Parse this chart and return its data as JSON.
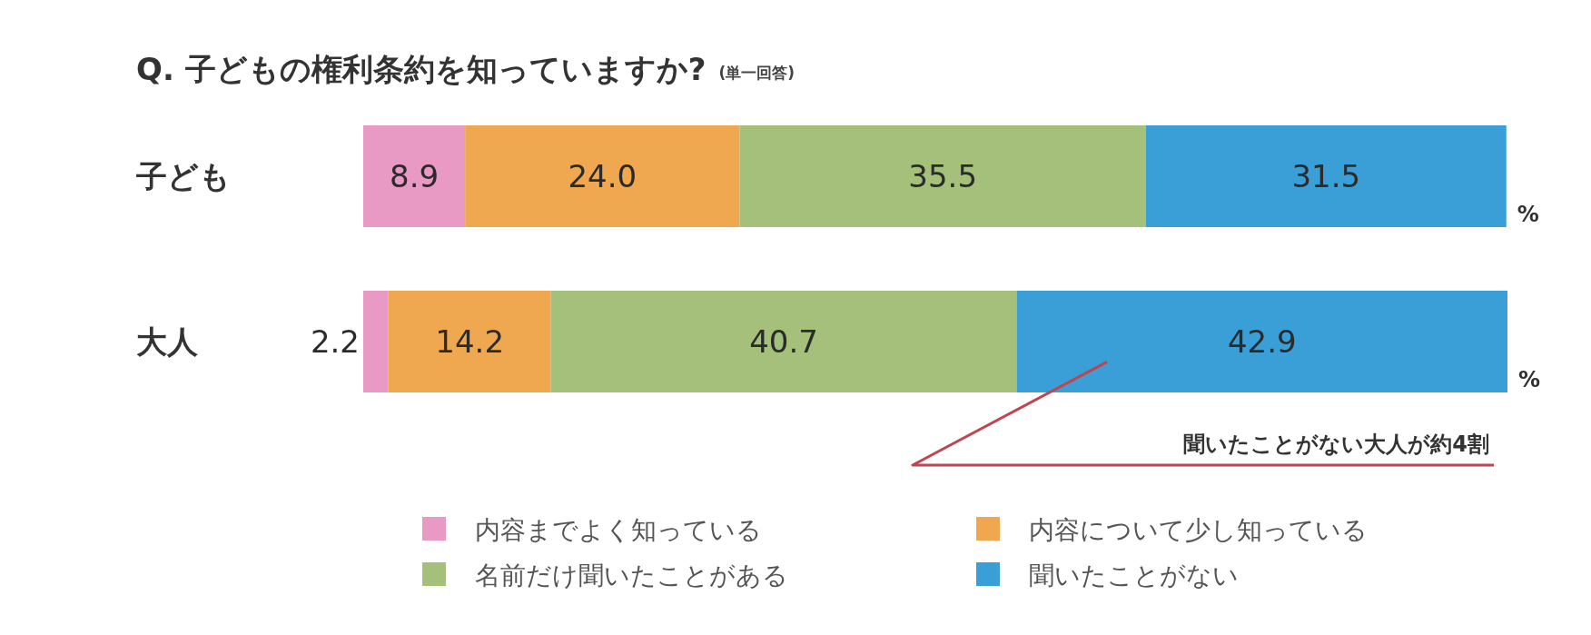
{
  "chart_data": {
    "type": "bar",
    "orientation": "horizontal",
    "stacked": true,
    "title": "Q. 子どもの権利条約を知っていますか?",
    "subtitle": "(単一回答)",
    "categories": [
      "子ども",
      "大人"
    ],
    "series": [
      {
        "name": "内容までよく知っている",
        "color": "#e99ac4",
        "values": [
          8.9,
          2.2
        ],
        "value_labels": [
          "8.9",
          "2.2"
        ]
      },
      {
        "name": "内容について少し知っている",
        "color": "#f0a850",
        "values": [
          24.0,
          14.2
        ],
        "value_labels": [
          "24.0",
          "14.2"
        ]
      },
      {
        "name": "名前だけ聞いたことがある",
        "color": "#a4c07a",
        "values": [
          35.5,
          40.7
        ],
        "value_labels": [
          "35.5",
          "40.7"
        ]
      },
      {
        "name": "聞いたことがない",
        "color": "#3a9fd6",
        "values": [
          31.5,
          42.9
        ],
        "value_labels": [
          "31.5",
          "42.9"
        ]
      }
    ],
    "legend": "bottom",
    "annotations": [
      "%",
      "%",
      "聞いたことがない大人が約4割"
    ]
  }
}
